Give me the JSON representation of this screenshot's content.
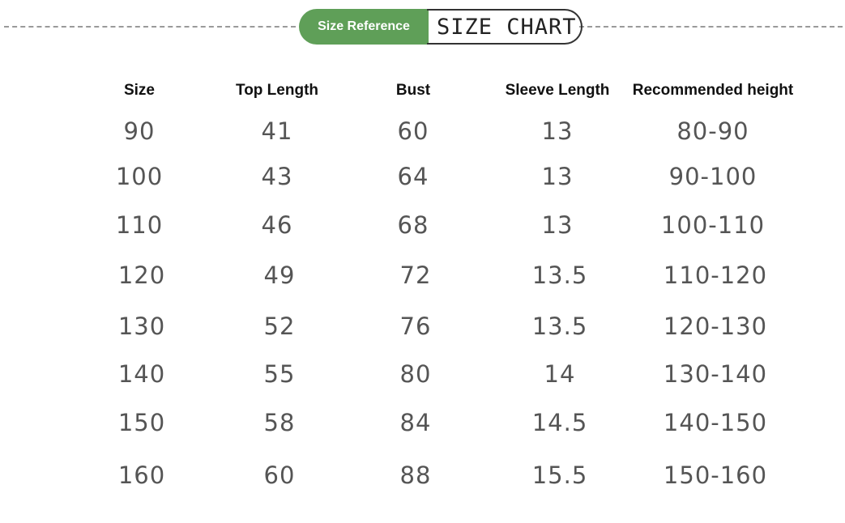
{
  "badge": {
    "left": "Size Reference",
    "right": "SIZE CHART",
    "accent": "#5f9f58"
  },
  "headers": [
    "Size",
    "Top Length",
    "Bust",
    "Sleeve Length",
    "Recommended height"
  ],
  "rows": [
    [
      "90",
      "41",
      "60",
      "13",
      "80-90"
    ],
    [
      "100",
      "43",
      "64",
      "13",
      "90-100"
    ],
    [
      "110",
      "46",
      "68",
      "13",
      "100-110"
    ],
    [
      "120",
      "49",
      "72",
      "13.5",
      "110-120"
    ],
    [
      "130",
      "52",
      "76",
      "13.5",
      "120-130"
    ],
    [
      "140",
      "55",
      "80",
      "14",
      "130-140"
    ],
    [
      "150",
      "58",
      "84",
      "14.5",
      "140-150"
    ],
    [
      "160",
      "60",
      "88",
      "15.5",
      "150-160"
    ]
  ]
}
